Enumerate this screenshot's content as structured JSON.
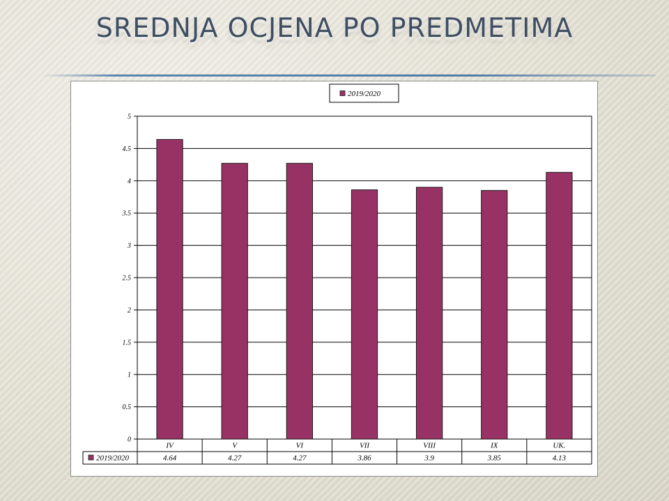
{
  "slide": {
    "title": "SREDNJA OCJENA PO PREDMETIMA"
  },
  "colors": {
    "bar": "#983264",
    "title": "#3f4e62"
  },
  "chart_data": {
    "type": "bar",
    "title": "",
    "xlabel": "",
    "ylabel": "",
    "categories": [
      "IV",
      "V",
      "VI",
      "VII",
      "VIII",
      "IX",
      "UK."
    ],
    "series": [
      {
        "name": "2019/2020",
        "values": [
          4.64,
          4.27,
          4.27,
          3.86,
          3.9,
          3.85,
          4.13
        ],
        "labels": [
          "4.64",
          "4.27",
          "4.27",
          "3.86",
          "3.9",
          "3.85",
          "4.13"
        ]
      }
    ],
    "ylim": [
      0,
      5
    ],
    "yticks": [
      0,
      0.5,
      1,
      1.5,
      2,
      2.5,
      3,
      3.5,
      4,
      4.5,
      5
    ],
    "grid": true,
    "legend": "top-center",
    "data_table": true
  }
}
